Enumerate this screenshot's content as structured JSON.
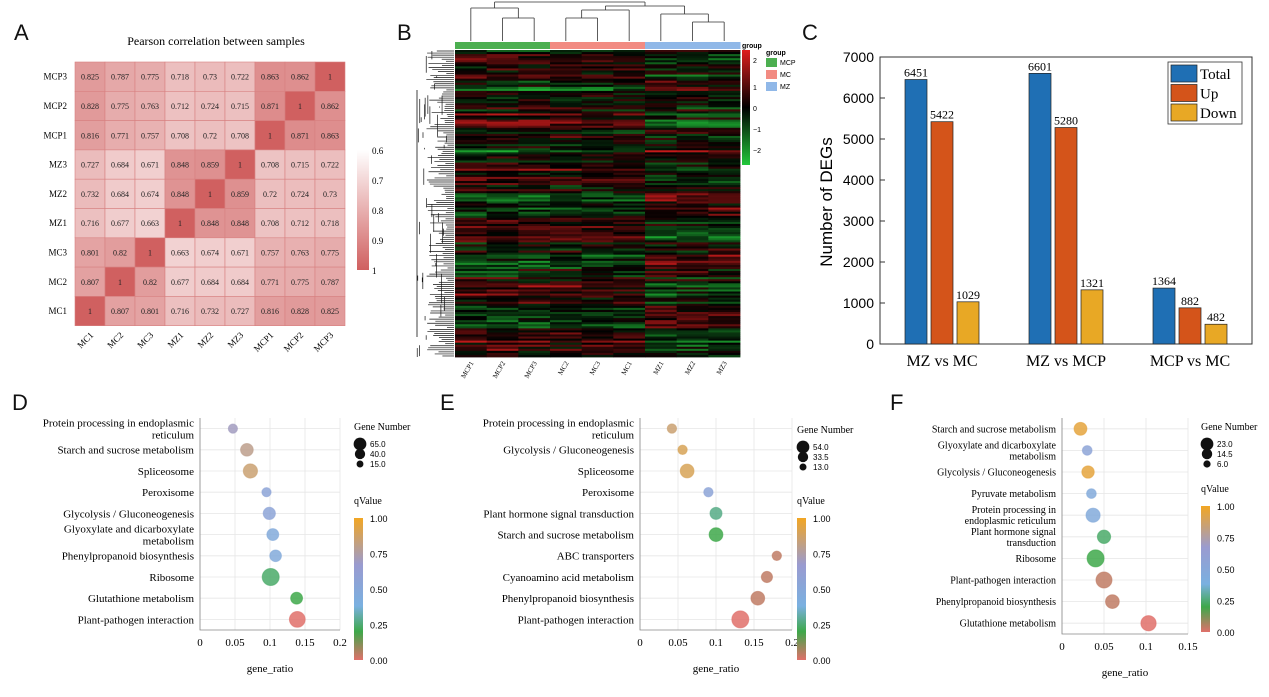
{
  "panels": {
    "A": "A",
    "B": "B",
    "C": "C",
    "D": "D",
    "E": "E",
    "F": "F"
  },
  "chart_data": [
    {
      "panel": "A",
      "type": "heatmap",
      "title": "Pearson correlation between samples",
      "rows": [
        "MCP3",
        "MCP2",
        "MCP1",
        "MZ3",
        "MZ2",
        "MZ1",
        "MC3",
        "MC2",
        "MC1"
      ],
      "columns": [
        "MC1",
        "MC2",
        "MC3",
        "MZ1",
        "MZ2",
        "MZ3",
        "MCP1",
        "MCP2",
        "MCP3"
      ],
      "values": [
        [
          "0.825",
          "0.787",
          "0.775",
          "0.718",
          "0.73",
          "0.722",
          "0.863",
          "0.862",
          "1"
        ],
        [
          "0.828",
          "0.775",
          "0.763",
          "0.712",
          "0.724",
          "0.715",
          "0.871",
          "1",
          "0.862"
        ],
        [
          "0.816",
          "0.771",
          "0.757",
          "0.708",
          "0.72",
          "0.708",
          "1",
          "0.871",
          "0.863"
        ],
        [
          "0.727",
          "0.684",
          "0.671",
          "0.848",
          "0.859",
          "1",
          "0.708",
          "0.715",
          "0.722"
        ],
        [
          "0.732",
          "0.684",
          "0.674",
          "0.848",
          "1",
          "0.859",
          "0.72",
          "0.724",
          "0.73"
        ],
        [
          "0.716",
          "0.677",
          "0.663",
          "1",
          "0.848",
          "0.848",
          "0.708",
          "0.712",
          "0.718"
        ],
        [
          "0.801",
          "0.82",
          "1",
          "0.663",
          "0.674",
          "0.671",
          "0.757",
          "0.763",
          "0.775"
        ],
        [
          "0.807",
          "1",
          "0.82",
          "0.677",
          "0.684",
          "0.684",
          "0.771",
          "0.775",
          "0.787"
        ],
        [
          "1",
          "0.807",
          "0.801",
          "0.716",
          "0.732",
          "0.727",
          "0.816",
          "0.828",
          "0.825"
        ]
      ],
      "colorbar_ticks": [
        "0.6",
        "0.7",
        "0.8",
        "0.9",
        "1"
      ],
      "colorbar_range": [
        0.6,
        1
      ]
    },
    {
      "panel": "B",
      "type": "heatmap",
      "columns": [
        "MCP1",
        "MCP2",
        "MCP3",
        "MC2",
        "MC3",
        "MC1",
        "MZ1",
        "MZ2",
        "MZ3"
      ],
      "column_groups": [
        "MCP",
        "MCP",
        "MCP",
        "MC",
        "MC",
        "MC",
        "MZ",
        "MZ",
        "MZ"
      ],
      "legend_title": "group",
      "legend_groups": [
        {
          "name": "MCP",
          "color": "#4caf50"
        },
        {
          "name": "MC",
          "color": "#f28b82"
        },
        {
          "name": "MZ",
          "color": "#90b8e8"
        }
      ],
      "colorbar_ticks": [
        "2",
        "1",
        "0",
        "−1",
        "−2"
      ],
      "colorbar_range": [
        -2,
        2
      ],
      "low_color": "#22c83a",
      "mid_color": "#000000",
      "high_color": "#e01e1e"
    },
    {
      "panel": "C",
      "type": "bar",
      "categories": [
        "MZ vs MC",
        "MZ vs MCP",
        "MCP vs MC"
      ],
      "series": [
        {
          "name": "Total",
          "color": "#1f6fb4",
          "values": [
            6451,
            6601,
            1364
          ]
        },
        {
          "name": "Up",
          "color": "#d4541a",
          "values": [
            5422,
            5280,
            882
          ]
        },
        {
          "name": "Down",
          "color": "#e8a825",
          "values": [
            1029,
            1321,
            482
          ]
        }
      ],
      "ylabel": "Number of DEGs",
      "ylim": [
        0,
        7000
      ],
      "yticks": [
        0,
        1000,
        2000,
        3000,
        4000,
        5000,
        6000,
        7000
      ],
      "legend": "top-right"
    },
    {
      "panel": "D",
      "type": "scatter",
      "xlabel": "gene_ratio",
      "xlim": [
        0,
        0.2
      ],
      "xticks": [
        "0",
        "0.05",
        "0.1",
        "0.15",
        "0.2"
      ],
      "terms": [
        "Protein processing in endoplasmic reticulum",
        "Starch and sucrose metabolism",
        "Spliceosome",
        "Peroxisome",
        "Glycolysis / Gluconeogenesis",
        "Glyoxylate and dicarboxylate metabolism",
        "Phenylpropanoid biosynthesis",
        "Ribosome",
        "Glutathione metabolism",
        "Plant-pathogen interaction"
      ],
      "gene_ratio": [
        0.047,
        0.067,
        0.072,
        0.095,
        0.099,
        0.104,
        0.108,
        0.101,
        0.138,
        0.139
      ],
      "gene_number": [
        15,
        33,
        43,
        15,
        30,
        28,
        27,
        65,
        28,
        55
      ],
      "qvalue": [
        0.7,
        0.8,
        0.85,
        0.6,
        0.6,
        0.55,
        0.55,
        0.3,
        0.25,
        0.0
      ],
      "size_legend_title": "Gene Number",
      "size_legend": [
        "65.0",
        "40.0",
        "15.0"
      ],
      "size_legend_values": [
        65,
        40,
        15
      ],
      "color_legend_title": "qValue",
      "color_ticks": [
        "1.00",
        "0.75",
        "0.50",
        "0.25",
        "0.00"
      ]
    },
    {
      "panel": "E",
      "type": "scatter",
      "xlabel": "gene_ratio",
      "xlim": [
        0,
        0.2
      ],
      "xticks": [
        "0",
        "0.05",
        "0.1",
        "0.15",
        "0.2"
      ],
      "terms": [
        "Protein processing in endoplasmic reticulum",
        "Glycolysis / Gluconeogenesis",
        "Spliceosome",
        "Peroxisome",
        "Plant hormone signal transduction",
        "Starch and sucrose metabolism",
        "ABC transporters",
        "Cyanoamino acid metabolism",
        "Phenylpropanoid biosynthesis",
        "Plant-pathogen interaction"
      ],
      "gene_ratio": [
        0.042,
        0.056,
        0.062,
        0.09,
        0.1,
        0.1,
        0.18,
        0.167,
        0.155,
        0.132
      ],
      "gene_number": [
        13,
        13,
        33,
        13,
        24,
        33,
        13,
        20,
        33,
        54
      ],
      "qvalue": [
        0.85,
        0.9,
        0.9,
        0.6,
        0.35,
        0.25,
        0.05,
        0.05,
        0.05,
        0.0
      ],
      "size_legend_title": "Gene Number",
      "size_legend": [
        "54.0",
        "33.5",
        "13.0"
      ],
      "size_legend_values": [
        54,
        33.5,
        13
      ],
      "color_legend_title": "qValue",
      "color_ticks": [
        "1.00",
        "0.75",
        "0.50",
        "0.25",
        "0.00"
      ]
    },
    {
      "panel": "F",
      "type": "scatter",
      "xlabel": "gene_ratio",
      "xlim": [
        0,
        0.15
      ],
      "xticks": [
        "0",
        "0.05",
        "0.1",
        "0.15"
      ],
      "terms": [
        "Starch and sucrose metabolism",
        "Glyoxylate and dicarboxylate metabolism",
        "Glycolysis / Gluconeogenesis",
        "Pyruvate metabolism",
        "Protein processing in endoplasmic reticulum",
        "Plant hormone signal transduction",
        "Ribosome",
        "Plant-pathogen interaction",
        "Phenylpropanoid biosynthesis",
        "Glutathione metabolism"
      ],
      "gene_ratio": [
        0.022,
        0.03,
        0.031,
        0.035,
        0.037,
        0.05,
        0.04,
        0.05,
        0.06,
        0.103
      ],
      "gene_number": [
        12,
        6,
        11,
        6,
        15,
        13,
        23,
        20,
        14,
        18
      ],
      "qvalue": [
        0.95,
        0.6,
        0.95,
        0.55,
        0.55,
        0.3,
        0.25,
        0.05,
        0.05,
        0.0
      ],
      "size_legend_title": "Gene Number",
      "size_legend": [
        "23.0",
        "14.5",
        "6.0"
      ],
      "size_legend_values": [
        23,
        14.5,
        6
      ],
      "color_legend_title": "qValue",
      "color_ticks": [
        "1.00",
        "0.75",
        "0.50",
        "0.25",
        "0.00"
      ]
    }
  ]
}
